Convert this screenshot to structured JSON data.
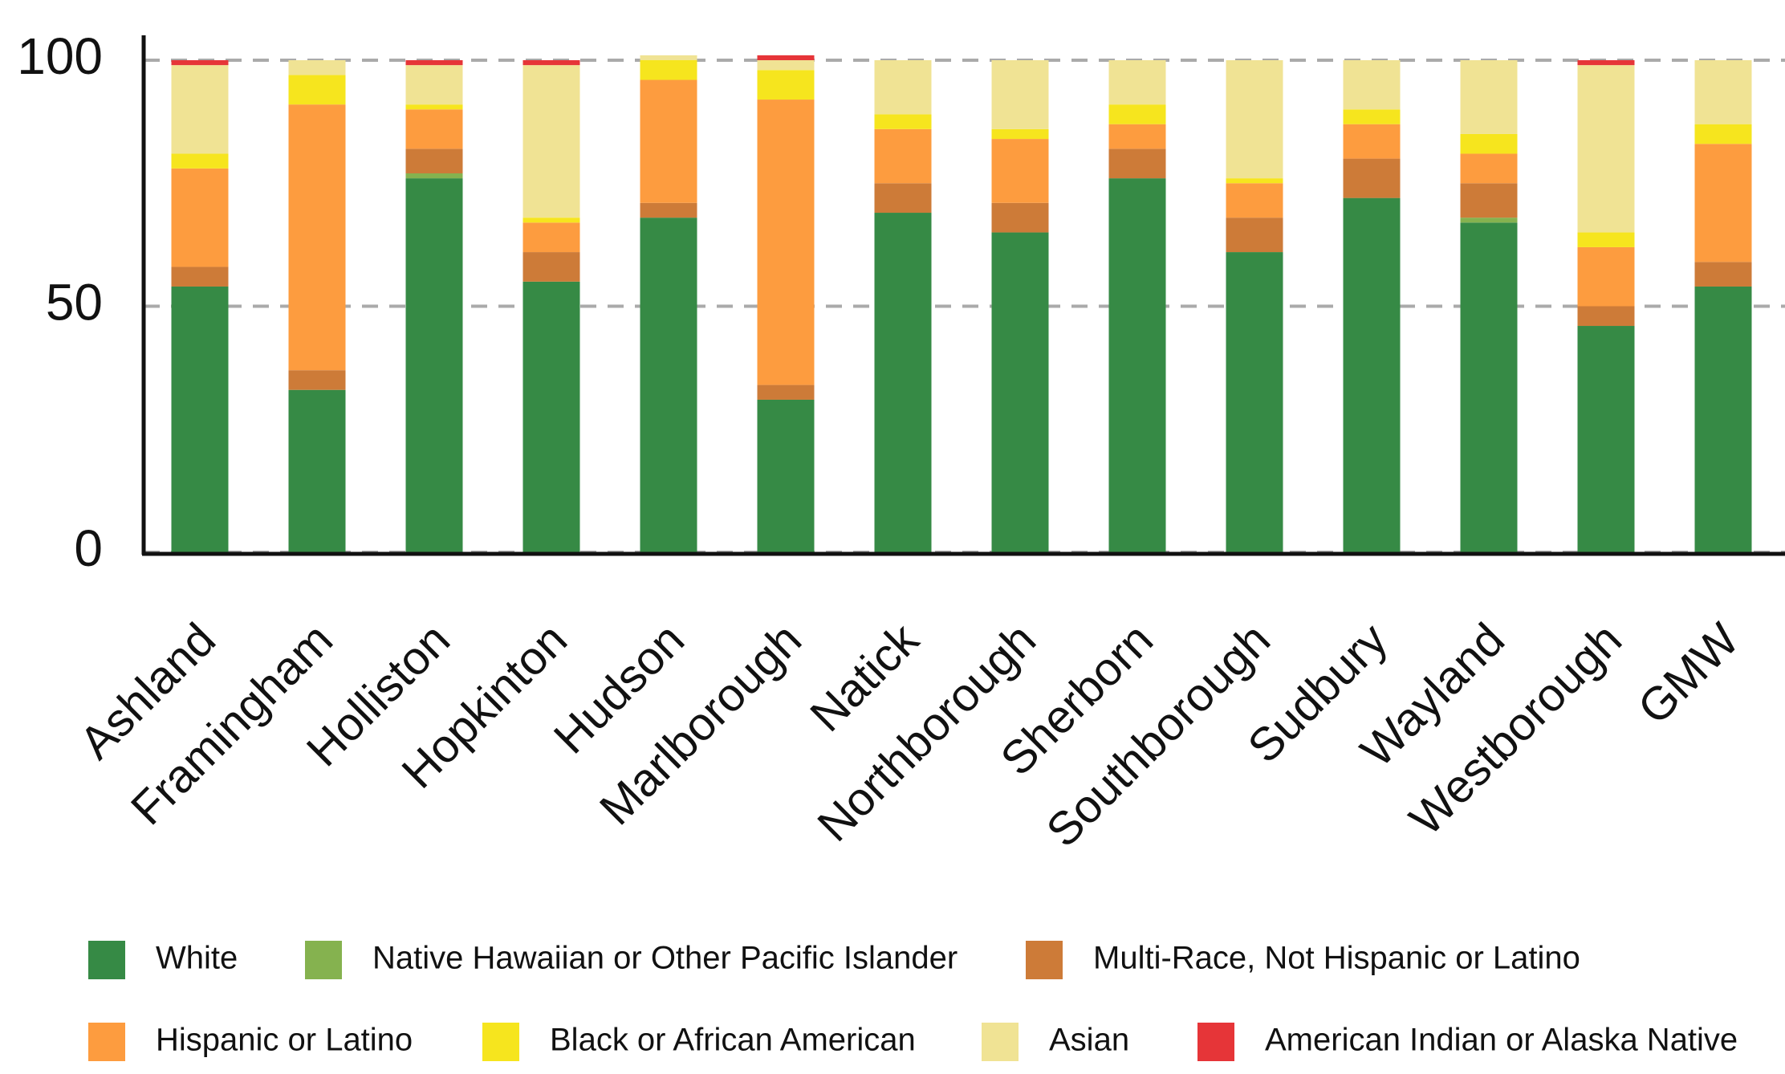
{
  "chart_data": {
    "type": "stacked_bar",
    "categories": [
      "Ashland",
      "Framingham",
      "Holliston",
      "Hopkinton",
      "Hudson",
      "Marlborough",
      "Natick",
      "Northborough",
      "Sherborn",
      "Southborough",
      "Sudbury",
      "Wayland",
      "Westborough",
      "GMW"
    ],
    "series": [
      {
        "name": "White",
        "color": "#368a45",
        "values": [
          54,
          33,
          76,
          55,
          68,
          31,
          69,
          65,
          76,
          61,
          72,
          67,
          46,
          54
        ]
      },
      {
        "name": "Native Hawaiian or Other Pacific Islander",
        "color": "#85b24f",
        "values": [
          0,
          0,
          1,
          0,
          0,
          0,
          0,
          0,
          0,
          0,
          0,
          1,
          0,
          0
        ]
      },
      {
        "name": "Multi-Race, Not Hispanic or Latino",
        "color": "#cd7b38",
        "values": [
          4,
          4,
          5,
          6,
          3,
          3,
          6,
          6,
          6,
          7,
          8,
          7,
          4,
          5
        ]
      },
      {
        "name": "Hispanic or Latino",
        "color": "#fd9c3f",
        "values": [
          20,
          54,
          8,
          6,
          25,
          58,
          11,
          13,
          5,
          7,
          7,
          6,
          12,
          24
        ]
      },
      {
        "name": "Black or African American",
        "color": "#f6e51e",
        "values": [
          3,
          6,
          1,
          1,
          4,
          6,
          3,
          2,
          4,
          1,
          3,
          4,
          3,
          4
        ]
      },
      {
        "name": "Asian",
        "color": "#f0e394",
        "values": [
          18,
          3,
          8,
          31,
          1,
          2,
          11,
          14,
          9,
          24,
          10,
          15,
          34,
          13
        ]
      },
      {
        "name": "American Indian or Alaska Native",
        "color": "#e63538",
        "values": [
          1,
          0,
          1,
          1,
          0,
          1,
          0,
          0,
          0,
          0,
          0,
          0,
          1,
          0
        ]
      }
    ],
    "ylim": [
      0,
      100
    ],
    "yticks": [
      0,
      50,
      100
    ],
    "grid": true
  }
}
